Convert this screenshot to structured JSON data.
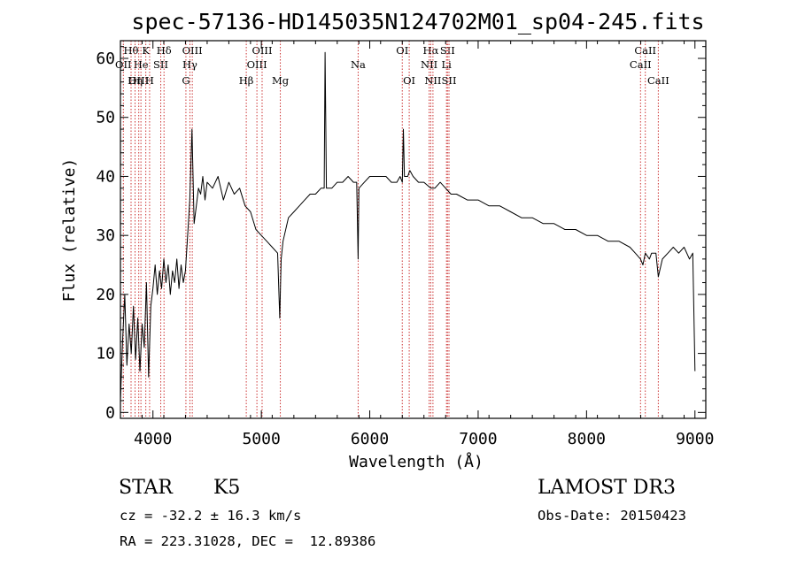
{
  "chart_data": {
    "type": "line",
    "title": "spec-57136-HD145035N124702M01_sp04-245.fits",
    "xlabel": "Wavelength (Å)",
    "ylabel": "Flux (relative)",
    "xlim": [
      3700,
      9100
    ],
    "ylim": [
      -1,
      63
    ],
    "x_ticks": [
      4000,
      5000,
      6000,
      7000,
      8000,
      9000
    ],
    "y_ticks": [
      0,
      10,
      20,
      30,
      40,
      50,
      60
    ],
    "series": [
      {
        "name": "spectrum",
        "x": [
          3700,
          3720,
          3740,
          3760,
          3780,
          3800,
          3820,
          3840,
          3860,
          3880,
          3900,
          3920,
          3940,
          3960,
          3980,
          4000,
          4020,
          4040,
          4060,
          4080,
          4100,
          4120,
          4140,
          4160,
          4180,
          4200,
          4220,
          4240,
          4260,
          4280,
          4300,
          4320,
          4340,
          4360,
          4380,
          4400,
          4420,
          4440,
          4460,
          4480,
          4500,
          4550,
          4600,
          4650,
          4700,
          4750,
          4800,
          4850,
          4900,
          4950,
          5000,
          5050,
          5100,
          5150,
          5170,
          5183,
          5200,
          5250,
          5300,
          5350,
          5400,
          5450,
          5500,
          5550,
          5580,
          5588,
          5600,
          5650,
          5700,
          5750,
          5800,
          5850,
          5880,
          5893,
          5900,
          5950,
          6000,
          6050,
          6100,
          6150,
          6200,
          6250,
          6280,
          6300,
          6310,
          6320,
          6350,
          6370,
          6400,
          6450,
          6500,
          6563,
          6600,
          6650,
          6700,
          6750,
          6800,
          6900,
          7000,
          7100,
          7200,
          7300,
          7400,
          7500,
          7600,
          7700,
          7800,
          7900,
          8000,
          8100,
          8200,
          8300,
          8400,
          8450,
          8498,
          8520,
          8542,
          8580,
          8600,
          8640,
          8662,
          8700,
          8750,
          8800,
          8850,
          8900,
          8950,
          8980,
          9000
        ],
        "values": [
          2,
          12,
          20,
          8,
          15,
          10,
          18,
          9,
          16,
          7,
          15,
          11,
          22,
          6,
          18,
          21,
          25,
          20,
          24,
          21,
          26,
          22,
          25,
          20,
          24,
          22,
          26,
          21,
          25,
          22,
          24,
          30,
          36,
          48,
          32,
          35,
          38,
          37,
          40,
          36,
          39,
          38,
          40,
          36,
          39,
          37,
          38,
          35,
          34,
          31,
          30,
          29,
          28,
          27,
          16,
          26,
          29,
          33,
          34,
          35,
          36,
          37,
          37,
          38,
          38,
          61,
          38,
          38,
          39,
          39,
          40,
          39,
          39,
          26,
          38,
          39,
          40,
          40,
          40,
          40,
          39,
          39,
          40,
          39,
          48,
          40,
          40,
          41,
          40,
          39,
          39,
          38,
          38,
          39,
          38,
          37,
          37,
          36,
          36,
          35,
          35,
          34,
          33,
          33,
          32,
          32,
          31,
          31,
          30,
          30,
          29,
          29,
          28,
          27,
          26,
          25,
          27,
          26,
          27,
          27,
          23,
          26,
          27,
          28,
          27,
          28,
          26,
          27,
          7
        ],
        "color": "#000000"
      }
    ],
    "spectral_lines": [
      {
        "label": "Hθ",
        "wavelength": 3798,
        "row": 1
      },
      {
        "label": "OII",
        "wavelength": 3727,
        "row": 2
      },
      {
        "label": "He",
        "wavelength": 3889,
        "row": 2
      },
      {
        "label": "OIII",
        "wavelength": 3869,
        "row": 3
      },
      {
        "label": "Hη",
        "wavelength": 3835,
        "row": 3
      },
      {
        "label": "K",
        "wavelength": 3934,
        "row": 1
      },
      {
        "label": "H",
        "wavelength": 3969,
        "row": 3
      },
      {
        "label": "SII",
        "wavelength": 4072,
        "row": 2
      },
      {
        "label": "Hδ",
        "wavelength": 4102,
        "row": 1
      },
      {
        "label": "OIII",
        "wavelength": 4363,
        "row": 1
      },
      {
        "label": "Hγ",
        "wavelength": 4341,
        "row": 2
      },
      {
        "label": "G",
        "wavelength": 4304,
        "row": 3
      },
      {
        "label": "Hβ",
        "wavelength": 4861,
        "row": 3
      },
      {
        "label": "OIII",
        "wavelength": 5007,
        "row": 1
      },
      {
        "label": "OIII",
        "wavelength": 4959,
        "row": 2
      },
      {
        "label": "Mg",
        "wavelength": 5175,
        "row": 3
      },
      {
        "label": "Na",
        "wavelength": 5893,
        "row": 2
      },
      {
        "label": "OI",
        "wavelength": 6300,
        "row": 1
      },
      {
        "label": "OI",
        "wavelength": 6364,
        "row": 3
      },
      {
        "label": "Hα",
        "wavelength": 6563,
        "row": 1
      },
      {
        "label": "NII",
        "wavelength": 6548,
        "row": 2
      },
      {
        "label": "NII",
        "wavelength": 6583,
        "row": 3
      },
      {
        "label": "SII",
        "wavelength": 6717,
        "row": 1
      },
      {
        "label": "Li",
        "wavelength": 6708,
        "row": 2
      },
      {
        "label": "SII",
        "wavelength": 6731,
        "row": 3
      },
      {
        "label": "CaII",
        "wavelength": 8542,
        "row": 1
      },
      {
        "label": "CaII",
        "wavelength": 8498,
        "row": 2
      },
      {
        "label": "CaII",
        "wavelength": 8662,
        "row": 3
      }
    ],
    "line_color": "#cc3333"
  },
  "info": {
    "object_class": "STAR",
    "subclass": "K5",
    "survey": "LAMOST DR3",
    "cz": "cz = -32.2 ± 16.3 km/s",
    "obs_date": "Obs-Date: 20150423",
    "coords": "RA = 223.31028, DEC =  12.89386"
  }
}
